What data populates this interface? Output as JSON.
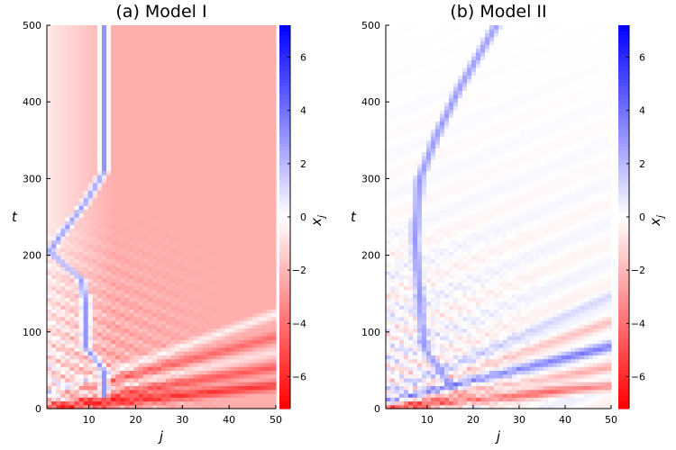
{
  "chart_data": [
    {
      "type": "heatmap",
      "title": "(a) Model I",
      "xlabel": "j",
      "ylabel": "t",
      "xlim": [
        1,
        50
      ],
      "ylim": [
        0,
        500
      ],
      "xticks": [
        "10",
        "20",
        "30",
        "40",
        "50"
      ],
      "yticks": [
        "0",
        "100",
        "200",
        "300",
        "400",
        "500"
      ],
      "colorbar": {
        "label": "x",
        "label_sub": "j",
        "range": [
          -7.2,
          7.2
        ],
        "ticks": [
          "-6",
          "-4",
          "-2",
          "0",
          "2",
          "4",
          "6"
        ],
        "colormap": [
          "#ff0000",
          "#ffffff",
          "#0000ff"
        ]
      },
      "features": {
        "background_level": -2.3,
        "trail_path": [
          [
            13,
            20
          ],
          [
            13,
            50
          ],
          [
            9,
            80
          ],
          [
            9,
            140
          ],
          [
            8,
            170
          ],
          [
            1,
            205
          ],
          [
            4,
            230
          ],
          [
            9,
            270
          ],
          [
            13,
            310
          ],
          [
            13,
            500
          ]
        ],
        "trail_level": 2.5,
        "waves": [
          {
            "slope": 0.62,
            "level": -3.5
          },
          {
            "slope": 1.0,
            "level": -2.5
          },
          {
            "slope": 1.3,
            "level": 1.5
          },
          {
            "slope": 1.6,
            "level": -2.0
          },
          {
            "slope": 2.1,
            "level": 2.0
          }
        ]
      }
    },
    {
      "type": "heatmap",
      "title": "(b) Model II",
      "xlabel": "j",
      "ylabel": "t",
      "xlim": [
        1,
        50
      ],
      "ylim": [
        0,
        500
      ],
      "xticks": [
        "10",
        "20",
        "30",
        "40",
        "50"
      ],
      "yticks": [
        "0",
        "100",
        "200",
        "300",
        "400",
        "500"
      ],
      "colorbar": {
        "label": "x",
        "label_sub": "j",
        "range": [
          -7.2,
          7.2
        ],
        "ticks": [
          "-6",
          "-4",
          "-2",
          "0",
          "2",
          "4",
          "6"
        ],
        "colormap": [
          "#ff0000",
          "#ffffff",
          "#0000ff"
        ]
      },
      "features": {
        "background_level": 0.0,
        "trail_path": [
          [
            15,
            30
          ],
          [
            9,
            80
          ],
          [
            8,
            150
          ],
          [
            7,
            220
          ],
          [
            8,
            300
          ],
          [
            12,
            360
          ],
          [
            17,
            420
          ],
          [
            25,
            500
          ]
        ],
        "trail_level": 2.5,
        "waves": [
          {
            "slope": 0.62,
            "level": -4.0
          },
          {
            "slope": 1.0,
            "level": -2.0
          },
          {
            "slope": 1.45,
            "level": 3.5
          },
          {
            "slope": 2.0,
            "level": -1.5
          },
          {
            "slope": 2.6,
            "level": 1.0
          }
        ]
      }
    }
  ]
}
